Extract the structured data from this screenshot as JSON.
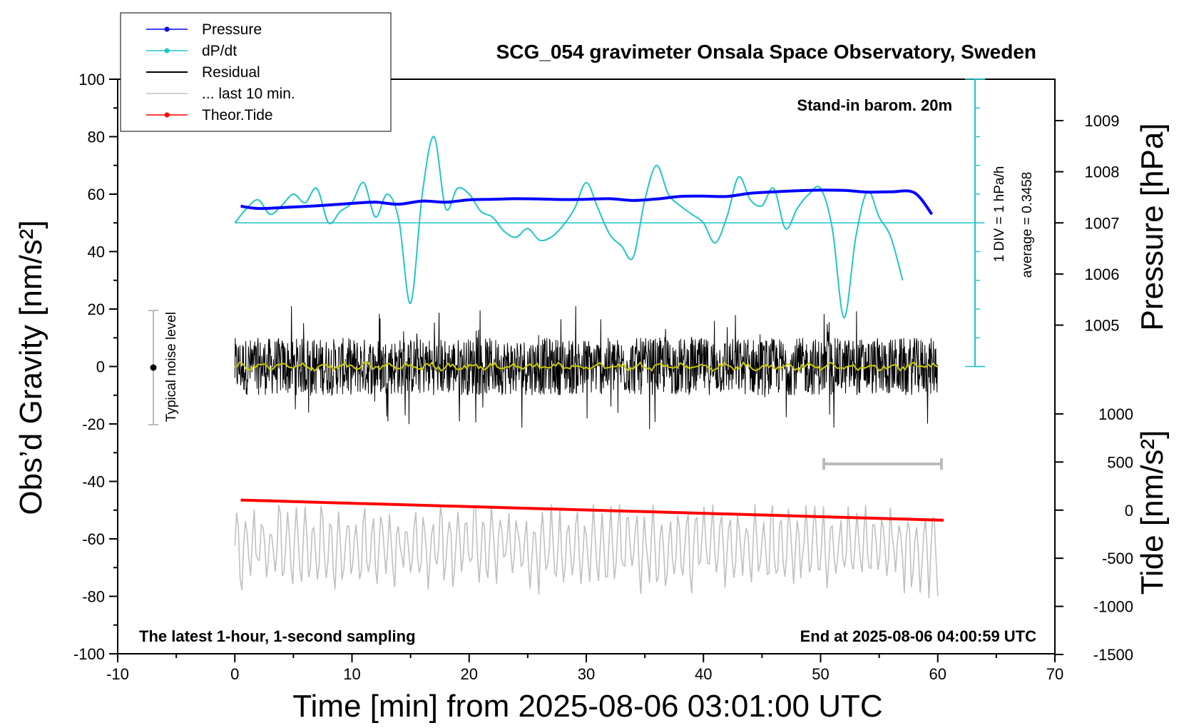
{
  "chart_data": {
    "type": "line",
    "title": "SCG_054 gravimeter Onsala Space Observatory, Sweden",
    "xlabel": "Time [min] from 2025-08-06 03:01:00 UTC",
    "ylabel": "Obs’d Gravity [nm/s²]",
    "ylabel_right_upper": "Pressure [hPa]",
    "ylabel_right_lower": "Tide [nm/s²]",
    "xlim": [
      -10,
      70
    ],
    "ylim": [
      -100,
      100
    ],
    "x_ticks": [
      "-10",
      "0",
      "10",
      "20",
      "30",
      "40",
      "50",
      "60",
      "70"
    ],
    "y_ticks": [
      "100",
      "80",
      "60",
      "40",
      "20",
      "0",
      "-20",
      "-40",
      "-60",
      "-80",
      "-100"
    ],
    "pressure_ticks": [
      "1009",
      "1008",
      "1007",
      "1006",
      "1005"
    ],
    "tide_ticks": [
      "1000",
      "500",
      "0",
      "-500",
      "-1000",
      "-1500"
    ],
    "annotations": {
      "barometer": "Stand-in barom. 20m",
      "sampling": "The latest 1-hour, 1-second sampling",
      "end_time": "End at 2025-08-06 04:00:59 UTC",
      "div_scale": "1 DIV = 1 hPa/h",
      "average": "average = 0.3458",
      "noise_level": "Typical noise level"
    },
    "legend": {
      "placement": "top-left",
      "entries": [
        {
          "label": "Pressure",
          "color": "#0000ff",
          "marker": true
        },
        {
          "label": "dP/dt",
          "color": "#22c5c8",
          "marker": true
        },
        {
          "label": "Residual",
          "color": "#000000",
          "marker": false
        },
        {
          "label": "... last 10 min.",
          "color": "#c0c0c0",
          "marker": false
        },
        {
          "label": "Theor.Tide",
          "color": "#ff0000",
          "marker": true
        }
      ]
    },
    "series": [
      {
        "name": "Pressure",
        "color": "#0000ff",
        "x": [
          0.5,
          2,
          4,
          6,
          8,
          10,
          12,
          14,
          16,
          18,
          20,
          22,
          24,
          26,
          28,
          30,
          32,
          34,
          36,
          38,
          40,
          42,
          44,
          46,
          48,
          50,
          52,
          54,
          56,
          58,
          59.5
        ],
        "y": [
          55.8,
          55,
          55.3,
          55.7,
          56.2,
          56.8,
          57.2,
          56.5,
          57.6,
          57.2,
          58,
          58.2,
          58.4,
          58.3,
          58.1,
          58.2,
          58.4,
          57.8,
          58.3,
          59.2,
          59.3,
          59.2,
          60.3,
          60.8,
          61.2,
          61.4,
          61.3,
          60.7,
          60.8,
          60.5,
          53
        ]
      },
      {
        "name": "dP/dt",
        "color": "#22c5c8",
        "x": [
          0,
          1,
          2,
          3,
          4,
          5,
          6,
          7,
          8,
          9,
          10,
          11,
          12,
          13,
          14,
          15,
          16,
          17,
          18,
          19,
          20,
          21,
          22,
          23,
          24,
          25,
          26,
          27,
          28,
          29,
          30,
          31,
          32,
          33,
          34,
          35,
          36,
          37,
          38,
          39,
          40,
          41,
          42,
          43,
          44,
          45,
          46,
          47,
          48,
          49,
          50,
          51,
          52,
          53,
          54,
          55,
          56,
          57
        ],
        "y": [
          50,
          55,
          58,
          53,
          56,
          60,
          57,
          62,
          50,
          54,
          57,
          64,
          52,
          60,
          51,
          22,
          60,
          80,
          55,
          62,
          60,
          54,
          52,
          47,
          45,
          48,
          44,
          45,
          49,
          55,
          64,
          55,
          46,
          42,
          38,
          58,
          70,
          60,
          56,
          53,
          50,
          43,
          52,
          66,
          58,
          56,
          62,
          48,
          55,
          60,
          62,
          48,
          17,
          45,
          61,
          52,
          45,
          30
        ]
      },
      {
        "name": "Residual",
        "color": "#000000",
        "x": [
          0,
          60
        ],
        "y": [
          0,
          0
        ],
        "range": [
          -27,
          21
        ]
      },
      {
        "name": "Residual (smoothed)",
        "color": "#c8c800",
        "x": [
          0,
          60
        ],
        "y": [
          0,
          0
        ]
      },
      {
        "name": "... last 10 min.",
        "color": "#c0c0c0",
        "x": [
          0,
          60
        ],
        "y": [
          -63,
          -63
        ],
        "range": [
          -82,
          -48
        ]
      },
      {
        "name": "Theor.Tide",
        "color": "#ff0000",
        "x": [
          0.5,
          60.5
        ],
        "y": [
          -46.5,
          -53.5
        ]
      }
    ]
  },
  "colors": {
    "pressure": "#0000ff",
    "dpdt": "#22c5c8",
    "residual": "#000000",
    "residual_smooth": "#c8c800",
    "last10": "#c0c0c0",
    "tide": "#ff0000"
  }
}
